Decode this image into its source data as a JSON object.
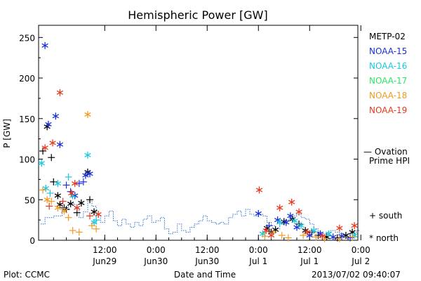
{
  "chart_data": {
    "type": "scatter",
    "title": "Hemispheric Power [GW]",
    "ylabel": "P [GW]",
    "xlabel": "Date and Time",
    "ylim": [
      0,
      265
    ],
    "xlim": [
      -15.5,
      59.3
    ],
    "yticks": [
      0,
      50,
      100,
      150,
      200,
      250
    ],
    "xticks": [
      {
        "x": 0,
        "top": "12:00",
        "bottom": "Jun29"
      },
      {
        "x": 12,
        "top": "0:00",
        "bottom": "Jun30"
      },
      {
        "x": 24,
        "top": "12:00",
        "bottom": "Jun30"
      },
      {
        "x": 36,
        "top": "0:00",
        "bottom": "Jul 1"
      },
      {
        "x": 48,
        "top": "12:00",
        "bottom": "Jul 1"
      },
      {
        "x": 60,
        "top": "0:00",
        "bottom": "Jul 2"
      }
    ],
    "x_units": "hours relative to 2013-06-29 12:00 UT",
    "legend": [
      {
        "name": "METP-02",
        "color": "#000000"
      },
      {
        "name": "NOAA-15",
        "color": "#1a2fd6"
      },
      {
        "name": "NOAA-16",
        "color": "#19c8e0"
      },
      {
        "name": "NOAA-17",
        "color": "#2ee56a"
      },
      {
        "name": "NOAA-18",
        "color": "#f09a22"
      },
      {
        "name": "NOAA-19",
        "color": "#e8391c"
      }
    ],
    "ovation_label": [
      "— Ovation",
      "Prime HPI"
    ],
    "ovation_color": "#2a6fd0",
    "marker_legend": {
      "south": "+ south",
      "north": "* north"
    },
    "ovation": [
      [
        -15.0,
        20
      ],
      [
        -14.0,
        28
      ],
      [
        -12.0,
        30
      ],
      [
        -10.0,
        38
      ],
      [
        -8.5,
        45
      ],
      [
        -7.0,
        40
      ],
      [
        -6.0,
        28
      ],
      [
        -5.0,
        35
      ],
      [
        -4.0,
        48
      ],
      [
        -3.0,
        42
      ],
      [
        -2.0,
        30
      ],
      [
        -1.0,
        22
      ],
      [
        0.0,
        30
      ],
      [
        1.0,
        36
      ],
      [
        2.0,
        24
      ],
      [
        3.0,
        18
      ],
      [
        4.0,
        26
      ],
      [
        5.0,
        20
      ],
      [
        6.0,
        16
      ],
      [
        7.0,
        22
      ],
      [
        8.0,
        18
      ],
      [
        9.0,
        26
      ],
      [
        10.0,
        30
      ],
      [
        11.0,
        22
      ],
      [
        12.0,
        24
      ],
      [
        13.0,
        28
      ],
      [
        14.0,
        14
      ],
      [
        15.0,
        8
      ],
      [
        16.0,
        10
      ],
      [
        17.0,
        20
      ],
      [
        18.0,
        12
      ],
      [
        19.0,
        10
      ],
      [
        20.0,
        16
      ],
      [
        21.0,
        20
      ],
      [
        22.0,
        24
      ],
      [
        23.0,
        30
      ],
      [
        24.0,
        24
      ],
      [
        25.0,
        22
      ],
      [
        26.0,
        20
      ],
      [
        27.0,
        22
      ],
      [
        28.0,
        20
      ],
      [
        29.0,
        28
      ],
      [
        30.0,
        32
      ],
      [
        31.0,
        36
      ],
      [
        32.0,
        30
      ],
      [
        33.0,
        38
      ],
      [
        34.0,
        32
      ],
      [
        35.0,
        30
      ],
      [
        36.0,
        32
      ],
      [
        37.0,
        30
      ],
      [
        38.0,
        22
      ],
      [
        39.0,
        18
      ],
      [
        40.0,
        14
      ],
      [
        41.0,
        20
      ],
      [
        42.0,
        24
      ],
      [
        43.0,
        26
      ],
      [
        44.0,
        30
      ],
      [
        45.0,
        32
      ],
      [
        46.0,
        28
      ],
      [
        47.0,
        26
      ],
      [
        48.0,
        20
      ],
      [
        49.0,
        14
      ],
      [
        50.0,
        10
      ],
      [
        51.0,
        8
      ],
      [
        52.0,
        10
      ],
      [
        53.0,
        12
      ],
      [
        54.0,
        10
      ],
      [
        55.0,
        8
      ],
      [
        56.0,
        6
      ],
      [
        57.0,
        8
      ],
      [
        58.0,
        10
      ],
      [
        59.0,
        12
      ]
    ],
    "series": [
      {
        "name": "METP-02",
        "color": "#000000",
        "points": [
          [
            -14.5,
            110,
            "south"
          ],
          [
            -13.5,
            140,
            "north"
          ],
          [
            -12.5,
            102,
            "south"
          ],
          [
            -12.0,
            72,
            "south"
          ],
          [
            -11.0,
            55,
            "north"
          ],
          [
            -10.5,
            44,
            "north"
          ],
          [
            -9.5,
            40,
            "south"
          ],
          [
            -9.0,
            38,
            "south"
          ],
          [
            -8.0,
            45,
            "north"
          ],
          [
            -6.5,
            34,
            "south"
          ],
          [
            -5.5,
            46,
            "north"
          ],
          [
            -4.0,
            84,
            "north"
          ],
          [
            -3.5,
            50,
            "south"
          ],
          [
            -2.5,
            35,
            "north"
          ],
          [
            38.0,
            15,
            "north"
          ],
          [
            39.0,
            10,
            "north"
          ],
          [
            40.0,
            13,
            "north"
          ],
          [
            42.0,
            23,
            "north"
          ],
          [
            44.0,
            26,
            "north"
          ],
          [
            45.5,
            20,
            "south"
          ],
          [
            47.0,
            12,
            "north"
          ],
          [
            48.5,
            10,
            "south"
          ],
          [
            50.0,
            6,
            "south"
          ],
          [
            52.0,
            4,
            "north"
          ],
          [
            54.5,
            3,
            "south"
          ],
          [
            56.5,
            6,
            "north"
          ],
          [
            58.0,
            10,
            "north"
          ]
        ]
      },
      {
        "name": "NOAA-15",
        "color": "#1a2fd6",
        "points": [
          [
            -14.0,
            240,
            "north"
          ],
          [
            -13.2,
            143,
            "north"
          ],
          [
            -11.5,
            153,
            "north"
          ],
          [
            -10.5,
            118,
            "north"
          ],
          [
            -9.0,
            68,
            "south"
          ],
          [
            -8.0,
            60,
            "south"
          ],
          [
            -7.0,
            55,
            "north"
          ],
          [
            -6.0,
            70,
            "south"
          ],
          [
            -5.0,
            72,
            "south"
          ],
          [
            -4.5,
            80,
            "north"
          ],
          [
            -3.5,
            82,
            "north"
          ],
          [
            36.0,
            33,
            "north"
          ],
          [
            38.5,
            18,
            "south"
          ],
          [
            40.5,
            25,
            "north"
          ],
          [
            42.5,
            22,
            "north"
          ],
          [
            43.5,
            30,
            "north"
          ],
          [
            45.0,
            16,
            "north"
          ],
          [
            48.0,
            6,
            "north"
          ],
          [
            50.5,
            8,
            "north"
          ],
          [
            53.5,
            4,
            "north"
          ],
          [
            55.5,
            5,
            "north"
          ],
          [
            57.5,
            3,
            "south"
          ]
        ]
      },
      {
        "name": "NOAA-16",
        "color": "#19c8e0",
        "points": [
          [
            -14.8,
            95,
            "north"
          ],
          [
            -13.8,
            64,
            "north"
          ],
          [
            -12.8,
            58,
            "south"
          ],
          [
            -11.0,
            70,
            "north"
          ],
          [
            -8.5,
            78,
            "south"
          ],
          [
            -7.5,
            55,
            "north"
          ],
          [
            -4.0,
            105,
            "north"
          ],
          [
            -2.5,
            22,
            "north"
          ],
          [
            -2.0,
            25,
            "south"
          ],
          [
            37.0,
            8,
            "north"
          ],
          [
            41.0,
            22,
            "north"
          ],
          [
            44.5,
            24,
            "north"
          ],
          [
            46.0,
            18,
            "north"
          ],
          [
            49.0,
            12,
            "north"
          ],
          [
            52.5,
            8,
            "north"
          ],
          [
            58.5,
            6,
            "north"
          ]
        ]
      },
      {
        "name": "NOAA-18",
        "color": "#f09a22",
        "points": [
          [
            -14.5,
            62,
            "south"
          ],
          [
            -13.5,
            50,
            "north"
          ],
          [
            -12.5,
            48,
            "south"
          ],
          [
            -11.0,
            40,
            "north"
          ],
          [
            -9.5,
            36,
            "north"
          ],
          [
            -8.5,
            28,
            "south"
          ],
          [
            -7.5,
            12,
            "south"
          ],
          [
            -6.0,
            10,
            "south"
          ],
          [
            -4.0,
            155,
            "north"
          ],
          [
            -3.0,
            18,
            "south"
          ],
          [
            -2.0,
            14,
            "south"
          ],
          [
            37.5,
            5,
            "south"
          ],
          [
            39.5,
            10,
            "south"
          ],
          [
            41.5,
            6,
            "south"
          ],
          [
            43.0,
            3,
            "south"
          ],
          [
            46.5,
            6,
            "south"
          ],
          [
            49.5,
            4,
            "south"
          ],
          [
            51.5,
            2,
            "south"
          ],
          [
            55.0,
            2,
            "south"
          ],
          [
            58.0,
            4,
            "south"
          ]
        ]
      },
      {
        "name": "NOAA-19",
        "color": "#e8391c",
        "points": [
          [
            -14.0,
            114,
            "north"
          ],
          [
            -12.2,
            120,
            "north"
          ],
          [
            -10.5,
            182,
            "north"
          ],
          [
            -13.0,
            42,
            "south"
          ],
          [
            -9.8,
            48,
            "south"
          ],
          [
            -7.8,
            58,
            "north"
          ],
          [
            -7.0,
            70,
            "north"
          ],
          [
            -6.5,
            40,
            "north"
          ],
          [
            -3.5,
            30,
            "south"
          ],
          [
            -1.5,
            32,
            "north"
          ],
          [
            36.2,
            62,
            "north"
          ],
          [
            37.8,
            12,
            "north"
          ],
          [
            39.0,
            6,
            "north"
          ],
          [
            41.0,
            40,
            "north"
          ],
          [
            43.8,
            47,
            "north"
          ],
          [
            45.5,
            35,
            "north"
          ],
          [
            47.5,
            10,
            "north"
          ],
          [
            51.0,
            5,
            "north"
          ],
          [
            55.0,
            15,
            "north"
          ],
          [
            58.5,
            18,
            "north"
          ]
        ]
      }
    ]
  },
  "footer": {
    "plot_credit": "Plot: CCMC",
    "xlabel": "Date and Time",
    "timestamp": "2013/07/02 09:40:07"
  }
}
